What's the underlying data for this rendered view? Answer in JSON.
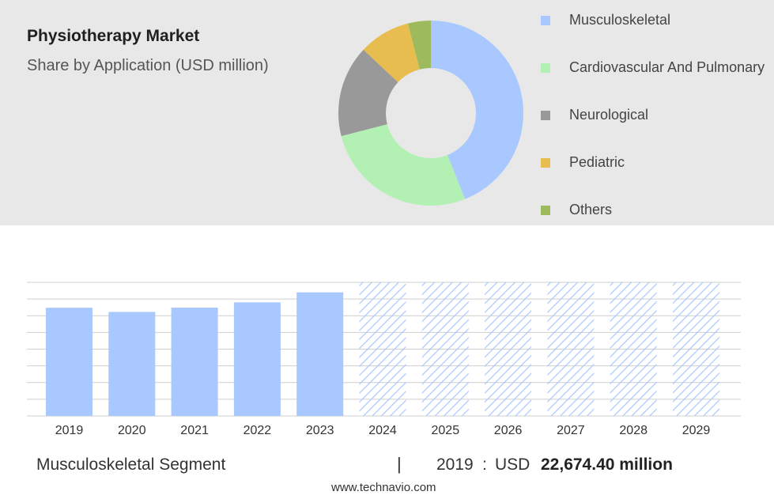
{
  "header": {
    "title": "Physiotherapy Market",
    "subtitle": "Share by Application (USD million)"
  },
  "chart_data": [
    {
      "type": "pie",
      "variant": "donut",
      "title": "Physiotherapy Market",
      "subtitle": "Share by Application (USD million)",
      "legend_position": "right",
      "categories": [
        "Musculoskeletal",
        "Cardiovascular And Pulmonary",
        "Neurological",
        "Pediatric",
        "Others"
      ],
      "values": [
        44,
        27,
        16,
        9,
        4
      ],
      "colors": [
        "#a8c8ff",
        "#b3f0b3",
        "#999999",
        "#e8bd4f",
        "#9dbb5c"
      ]
    },
    {
      "type": "bar",
      "categories": [
        "2019",
        "2020",
        "2021",
        "2022",
        "2023",
        "2024",
        "2025",
        "2026",
        "2027",
        "2028",
        "2029"
      ],
      "values": [
        22674.4,
        21800,
        22700,
        23800,
        25900,
        28000,
        28000,
        28000,
        28000,
        28000,
        28000
      ],
      "forecast_from_index": 5,
      "ylim": [
        0,
        28000
      ],
      "grid": true,
      "color": "#a8c8ff",
      "xlabel": "",
      "ylabel": ""
    }
  ],
  "footer": {
    "segment": "Musculoskeletal Segment",
    "separator": "|",
    "year": "2019",
    "colon": ":",
    "currency": "USD",
    "value": "22,674.40 million",
    "site": "www.technavio.com"
  }
}
